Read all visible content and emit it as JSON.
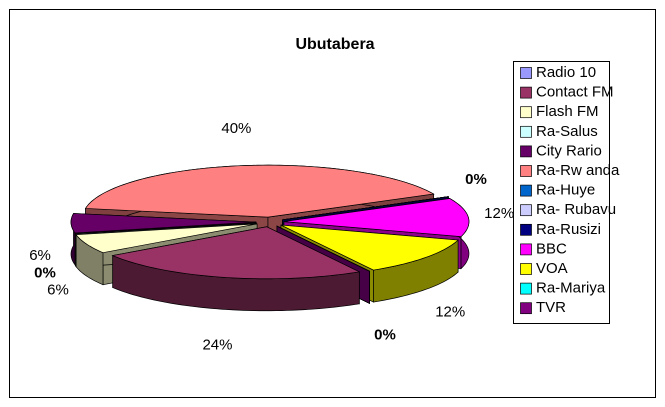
{
  "chart_data": {
    "type": "pie3d",
    "title": "Ubutabera",
    "categories": [
      "Radio 10",
      "Contact FM",
      "Flash FM",
      "Ra-Salus",
      "City Rario",
      "Ra-Rw anda",
      "Ra-Huye",
      "Ra- Rubavu",
      "Ra-Rusizi",
      "BBC",
      "VOA",
      "Ra-Mariya",
      "TVR"
    ],
    "values": [
      0,
      24,
      6,
      0,
      6,
      40,
      0,
      0,
      0,
      12,
      12,
      0,
      0
    ],
    "value_labels": [
      "0%",
      "24%",
      "6%",
      "0%",
      "6%",
      "40%",
      "0%",
      null,
      null,
      "12%",
      "12%",
      null,
      null
    ],
    "colors": [
      "#9999ff",
      "#993366",
      "#ffffcc",
      "#ccffff",
      "#660066",
      "#ff8080",
      "#0066cc",
      "#ccccff",
      "#000080",
      "#ff00ff",
      "#ffff00",
      "#00ffff",
      "#800080"
    ],
    "legend": "right"
  }
}
